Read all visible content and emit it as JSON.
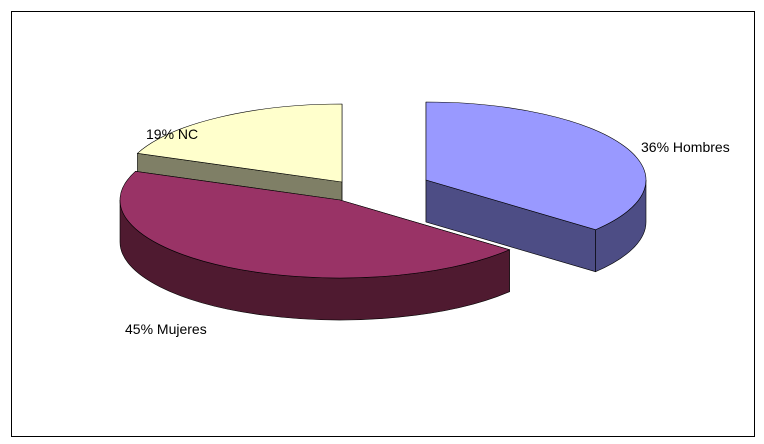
{
  "chart_data": {
    "type": "pie",
    "title": "",
    "categories": [
      "Hombres",
      "Mujeres",
      "NC"
    ],
    "values": [
      36,
      45,
      19
    ],
    "labels": [
      "36% Hombres",
      "45% Mujeres",
      "19% NC"
    ],
    "style": "3d-exploded",
    "legend": "none",
    "colors": {
      "Hombres": {
        "top": "#9999ff",
        "side": "#4d4d85"
      },
      "Mujeres": {
        "top": "#993366",
        "side": "#4f1a30"
      },
      "NC": {
        "top": "#ffffcc",
        "side": "#7f7f66"
      }
    }
  }
}
